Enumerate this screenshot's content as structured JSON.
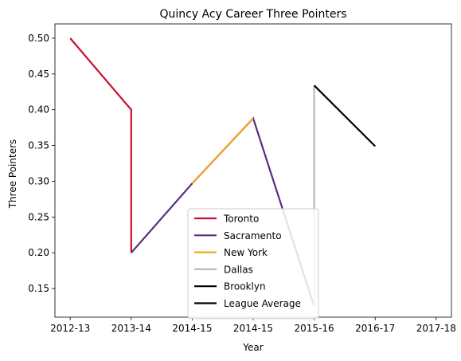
{
  "chart_data": {
    "type": "line",
    "title": "Quincy Acy Career Three Pointers",
    "xlabel": "Year",
    "ylabel": "Three Pointers",
    "x_tick_labels": [
      "2012-13",
      "2013-14",
      "2014-15",
      "2014-15",
      "2015-16",
      "2016-17",
      "2017-18"
    ],
    "xlim": [
      -0.25,
      6.25
    ],
    "ylim": [
      0.11,
      0.52
    ],
    "y_ticks": [
      0.15,
      0.2,
      0.25,
      0.3,
      0.35,
      0.4,
      0.45,
      0.5
    ],
    "y_tick_labels": [
      "0.15",
      "0.20",
      "0.25",
      "0.30",
      "0.35",
      "0.40",
      "0.45",
      "0.50"
    ],
    "grid": false,
    "legend_position": "lower center",
    "series": [
      {
        "name": "Toronto",
        "color": "#c8102e",
        "points": [
          [
            0,
            0.5
          ],
          [
            1,
            0.4
          ],
          [
            1,
            0.2
          ]
        ]
      },
      {
        "name": "Sacramento",
        "color": "#5a2d81",
        "points": [
          [
            1,
            0.2
          ],
          [
            2,
            0.297
          ],
          [
            3,
            0.388
          ],
          [
            4,
            0.125
          ]
        ]
      },
      {
        "name": "New York",
        "color": "#f5a623",
        "points": [
          [
            2,
            0.297
          ],
          [
            3,
            0.388
          ]
        ]
      },
      {
        "name": "Dallas",
        "color": "#bbbbbb",
        "points": [
          [
            4,
            0.125
          ],
          [
            4,
            0.434
          ]
        ]
      },
      {
        "name": "Brooklyn",
        "color": "#000000",
        "points": [
          [
            4,
            0.434
          ],
          [
            5,
            0.349
          ]
        ]
      },
      {
        "name": "League Average",
        "color": "#000000",
        "points": []
      }
    ]
  }
}
